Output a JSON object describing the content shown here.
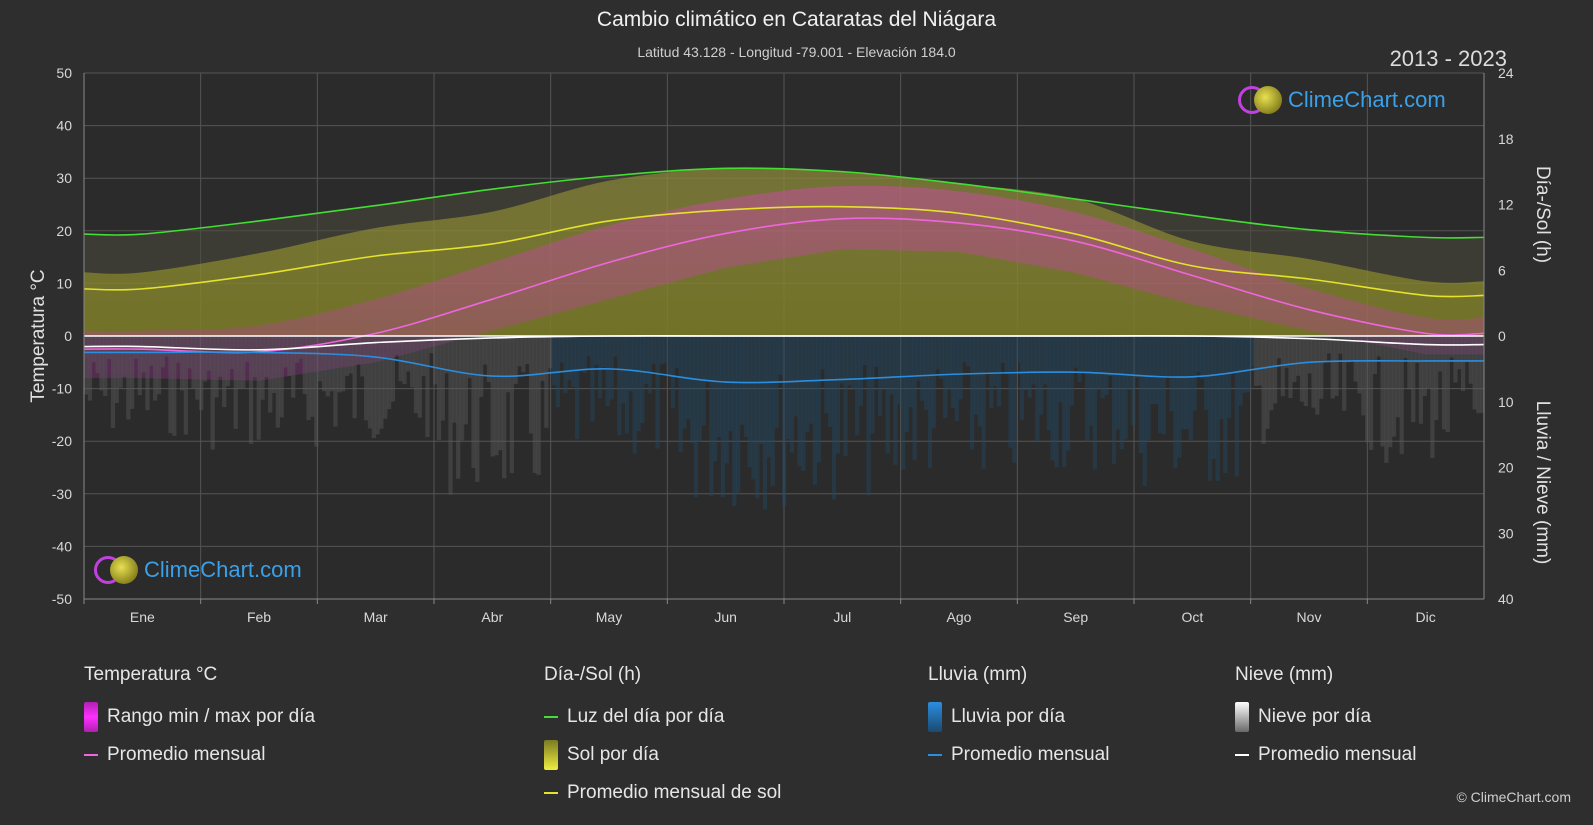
{
  "header": {
    "title": "Cambio climático en Cataratas del Niágara",
    "subtitle": "Latitud 43.128 - Longitud -79.001 - Elevación 184.0",
    "years": "2013 - 2023"
  },
  "logo_text": "ClimeChart.com",
  "copyright": "© ClimeChart.com",
  "colors": {
    "daylight": "#44dd33",
    "sun_avg": "#e4e22a",
    "temp_avg": "#ee66dd",
    "rain_avg": "#2a8ee0",
    "snow_avg": "#ffffff",
    "temp_range": "#dd22dd",
    "sun_bar": "#8f8f2a",
    "rain_bar": "#2a6a9a",
    "snow_bar": "#8a8a8a"
  },
  "chart_data": {
    "type": "area",
    "categories": [
      "Ene",
      "Feb",
      "Mar",
      "Abr",
      "May",
      "Jun",
      "Jul",
      "Ago",
      "Sep",
      "Oct",
      "Nov",
      "Dic"
    ],
    "left_axis": {
      "label": "Temperatura °C",
      "ticks": [
        "50",
        "40",
        "30",
        "20",
        "10",
        "0",
        "-10",
        "-20",
        "-30",
        "-40",
        "-50"
      ],
      "range": [
        -50,
        50
      ]
    },
    "right_axis_top": {
      "label": "Día-/Sol (h)",
      "ticks": [
        "24",
        "18",
        "12",
        "6",
        "0"
      ],
      "range": [
        0,
        24
      ]
    },
    "right_axis_bottom": {
      "label": "Lluvia / Nieve (mm)",
      "ticks": [
        "0",
        "10",
        "20",
        "30",
        "40"
      ],
      "range": [
        0,
        40
      ]
    },
    "grid": true,
    "series": [
      {
        "name": "Luz del día por día",
        "unit": "h",
        "values": [
          9.3,
          10.5,
          11.9,
          13.4,
          14.6,
          15.3,
          15.0,
          13.9,
          12.5,
          11.0,
          9.7,
          9.0
        ]
      },
      {
        "name": "Promedio mensual de sol",
        "unit": "h",
        "values": [
          4.3,
          5.6,
          7.3,
          8.4,
          10.5,
          11.5,
          11.8,
          11.2,
          9.3,
          6.4,
          5.2,
          3.7
        ]
      },
      {
        "name": "Promedio mensual (temperatura)",
        "unit": "°C",
        "values": [
          -2.5,
          -3.0,
          0.5,
          7.0,
          14.0,
          19.5,
          22.3,
          21.5,
          18.0,
          11.5,
          5.0,
          0.5
        ]
      },
      {
        "name": "Promedio mensual (lluvia)",
        "unit": "mm",
        "values": [
          2.5,
          2.5,
          3.2,
          6.1,
          5.0,
          7.0,
          6.6,
          5.8,
          5.5,
          6.2,
          4.0,
          3.8
        ]
      },
      {
        "name": "Promedio mensual (nieve)",
        "unit": "mm",
        "values": [
          1.6,
          2.1,
          1.0,
          0.3,
          0.0,
          0.0,
          0.0,
          0.0,
          0.0,
          0.0,
          0.4,
          1.3
        ]
      }
    ],
    "temp_range_daily": {
      "name": "Rango min / max por día",
      "max": [
        1.0,
        2.0,
        7.0,
        14.0,
        21.0,
        26.0,
        28.5,
        27.5,
        23.5,
        16.5,
        9.0,
        3.5
      ],
      "min": [
        -8.0,
        -8.5,
        -5.0,
        1.0,
        7.0,
        13.0,
        16.5,
        16.0,
        12.0,
        6.0,
        1.0,
        -3.5
      ]
    }
  },
  "legend": {
    "temperature": {
      "header": "Temperatura °C",
      "items": [
        "Rango min / max por día",
        "Promedio mensual"
      ]
    },
    "day_sun": {
      "header": "Día-/Sol (h)",
      "items": [
        "Luz del día por día",
        "Sol por día",
        "Promedio mensual de sol"
      ]
    },
    "rain": {
      "header": "Lluvia (mm)",
      "items": [
        "Lluvia por día",
        "Promedio mensual"
      ]
    },
    "snow": {
      "header": "Nieve (mm)",
      "items": [
        "Nieve por día",
        "Promedio mensual"
      ]
    }
  }
}
